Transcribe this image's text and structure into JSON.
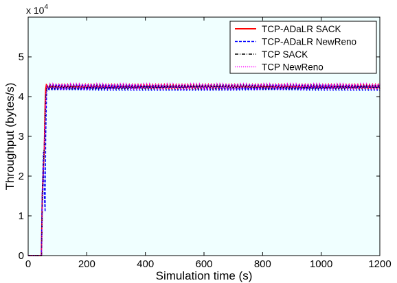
{
  "chart_data": {
    "type": "line",
    "title": "",
    "xlabel": "Simulation time (s)",
    "ylabel": "Throughput (bytes/s)",
    "y_multiplier": "x 10",
    "y_multiplier_exponent": "4",
    "xlim": [
      0,
      1200
    ],
    "ylim": [
      0,
      6
    ],
    "xticks": [
      0,
      200,
      400,
      600,
      800,
      1000,
      1200
    ],
    "xtick_labels": [
      "0",
      "200",
      "400",
      "600",
      "800",
      "1000",
      "1200"
    ],
    "yticks": [
      0,
      1,
      2,
      3,
      4,
      5
    ],
    "ytick_labels": [
      "0",
      "1",
      "2",
      "3",
      "4",
      "5"
    ],
    "grid": false,
    "background": "#f0ffff",
    "legend_position": "top-right",
    "series": [
      {
        "name": "TCP-ADaLR SACK",
        "color": "#ff0000",
        "style": "solid",
        "x": [
          0,
          45,
          48,
          55,
          58,
          60,
          62,
          65,
          1200
        ],
        "y": [
          0,
          0,
          1.5,
          2.7,
          3.8,
          4.2,
          4.3,
          4.28,
          4.28
        ],
        "oscillation": {
          "from": 65,
          "step": 10,
          "high": 4.3,
          "low": 4.2
        }
      },
      {
        "name": "TCP-ADaLR NewReno",
        "color": "#0000ff",
        "style": "dashed",
        "x": [
          0,
          45,
          48,
          52,
          55,
          58,
          60,
          63,
          66,
          1200
        ],
        "y": [
          0,
          0,
          1.6,
          2.6,
          1.5,
          1.1,
          3.0,
          4.1,
          4.28,
          4.28
        ],
        "oscillation": {
          "from": 66,
          "step": 10,
          "high": 4.3,
          "low": 4.15
        }
      },
      {
        "name": "TCP SACK",
        "color": "#000000",
        "style": "dashdot",
        "x": [
          0,
          46,
          50,
          56,
          60,
          64,
          1200
        ],
        "y": [
          0,
          0,
          1.8,
          3.0,
          4.0,
          4.25,
          4.25
        ],
        "oscillation": {
          "from": 64,
          "step": 10,
          "high": 4.28,
          "low": 4.2
        }
      },
      {
        "name": "TCP NewReno",
        "color": "#ff00ff",
        "style": "dotted",
        "x": [
          0,
          46,
          50,
          56,
          61,
          64,
          1200
        ],
        "y": [
          0,
          0,
          1.7,
          3.1,
          4.05,
          4.3,
          4.3
        ],
        "oscillation": {
          "from": 64,
          "step": 10,
          "high": 4.32,
          "low": 4.2
        }
      }
    ]
  }
}
